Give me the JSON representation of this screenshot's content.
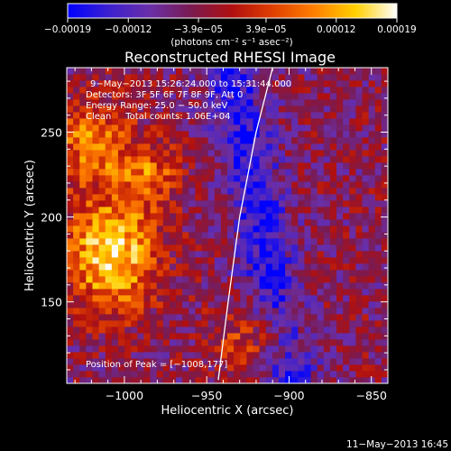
{
  "chart_data": {
    "type": "heatmap",
    "title": "Reconstructed RHESSI Image",
    "xlabel": "Heliocentric X (arcsec)",
    "ylabel": "Heliocentric Y (arcsec)",
    "xlim": [
      -1035,
      -840
    ],
    "ylim": [
      102,
      288
    ],
    "xticks": [
      -1000,
      -950,
      -900,
      -850
    ],
    "xtick_labels": [
      "−1000",
      "−950",
      "−900",
      "−850"
    ],
    "yticks": [
      100,
      150,
      200,
      250
    ],
    "ytick_labels": [
      "100",
      "150",
      "200",
      "250"
    ],
    "colorbar": {
      "min": -0.00019,
      "max": 0.00019,
      "ticks": [
        -0.00019,
        -0.00012,
        -3.9e-05,
        3.9e-05,
        0.00012,
        0.00019
      ],
      "tick_labels": [
        "−0.00019",
        "−0.00012",
        "−3.9e−05",
        "3.9e−05",
        "0.00012",
        "0.00019"
      ],
      "unit_label": "(photons cm⁻² s⁻¹ asec⁻²)",
      "colors": [
        "#0000ff",
        "#3c20d0",
        "#6a2fa8",
        "#7a1a50",
        "#b01010",
        "#e04000",
        "#ff8000",
        "#ffd000",
        "#ffffff"
      ]
    },
    "annotations": {
      "time_range": "9−May−2013 15:26:24.000 to 15:31:44.000",
      "detectors": "Detectors: 3F 5F 6F 7F 8F 9F, Att 0",
      "energy": "Energy Range: 25.0 − 50.0 keV",
      "clean": "Clean     Total counts: 1.06E+04",
      "peak": "Position of Peak = [−1008,177]"
    },
    "peak": [
      -1008,
      177
    ],
    "limb_curve": [
      [
        -943,
        104
      ],
      [
        -937,
        150
      ],
      [
        -930,
        200
      ],
      [
        -920,
        250
      ],
      [
        -910,
        288
      ]
    ]
  },
  "footer": {
    "timestamp": "11−May−2013 16:45"
  }
}
